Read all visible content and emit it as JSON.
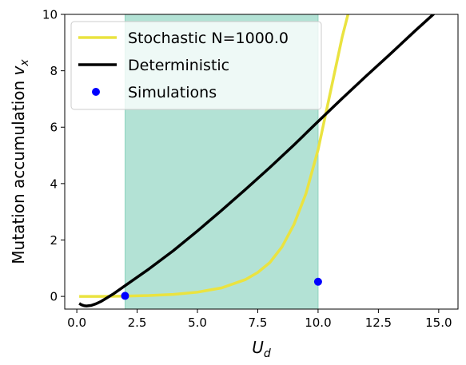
{
  "chart_data": {
    "type": "line",
    "xlim": [
      -0.5,
      15.8
    ],
    "ylim": [
      -0.45,
      10
    ],
    "x_ticks": [
      0.0,
      2.5,
      5.0,
      7.5,
      10.0,
      12.5,
      15.0
    ],
    "x_tick_labels": [
      "0.0",
      "2.5",
      "5.0",
      "7.5",
      "10.0",
      "12.5",
      "15.0"
    ],
    "y_ticks": [
      0,
      2,
      4,
      6,
      8,
      10
    ],
    "y_tick_labels": [
      "0",
      "2",
      "4",
      "6",
      "8",
      "10"
    ],
    "xlabel_main": "U",
    "xlabel_sub": "d",
    "ylabel_main": "Mutation accumulation ",
    "ylabel_var": "v",
    "ylabel_sub": "x",
    "grid": false,
    "legend_position": "top-left",
    "shaded_region": {
      "x0": 2.0,
      "x1": 10.0,
      "color": "#b3e2d5"
    },
    "series": [
      {
        "name": "Stochastic N=1000.0",
        "kind": "line",
        "color": "#eae340",
        "x": [
          0.1,
          1.0,
          2.0,
          3.0,
          4.0,
          5.0,
          6.0,
          7.0,
          7.5,
          8.0,
          8.5,
          9.0,
          9.5,
          10.0,
          10.5,
          11.0,
          11.3
        ],
        "y": [
          0.0,
          0.0,
          0.01,
          0.03,
          0.07,
          0.15,
          0.3,
          0.6,
          0.85,
          1.2,
          1.75,
          2.55,
          3.65,
          5.2,
          7.2,
          9.2,
          10.2
        ]
      },
      {
        "name": "Deterministic",
        "kind": "line",
        "color": "#000000",
        "x": [
          0.1,
          0.2,
          0.3,
          0.4,
          0.6,
          0.8,
          1.0,
          1.5,
          2.0,
          3.0,
          4.0,
          5.0,
          6.0,
          7.0,
          8.0,
          9.0,
          10.0,
          11.0,
          12.0,
          13.0,
          14.0,
          14.8
        ],
        "y": [
          -0.25,
          -0.3,
          -0.33,
          -0.34,
          -0.32,
          -0.26,
          -0.18,
          0.08,
          0.38,
          0.98,
          1.62,
          2.32,
          3.05,
          3.8,
          4.57,
          5.37,
          6.2,
          7.02,
          7.82,
          8.6,
          9.4,
          10.02
        ]
      },
      {
        "name": "Simulations",
        "kind": "scatter",
        "color": "#0000ff",
        "x": [
          2.0,
          10.0
        ],
        "y": [
          0.02,
          0.52
        ]
      }
    ]
  }
}
